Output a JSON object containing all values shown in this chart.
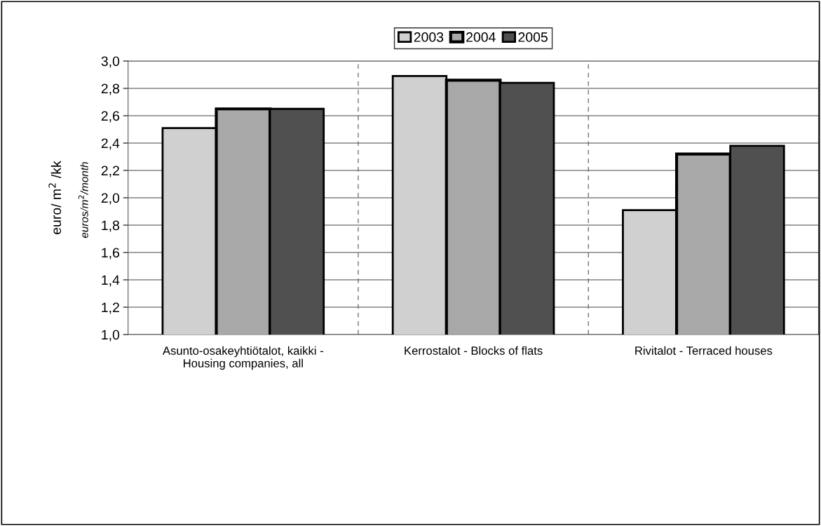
{
  "chart_data": {
    "type": "bar",
    "categories": [
      "Asunto-osakeyhtiötalot, kaikki -\nHousing companies, all",
      "Kerrostalot - Blocks of flats",
      "Rivitalot - Terraced houses"
    ],
    "series": [
      {
        "name": "2003",
        "color": "#d0d0d0",
        "values": [
          2.51,
          2.89,
          1.91
        ]
      },
      {
        "name": "2004",
        "color": "#a8a8a8",
        "values": [
          2.65,
          2.86,
          2.32
        ]
      },
      {
        "name": "2005",
        "color": "#505050",
        "values": [
          2.65,
          2.84,
          2.38
        ]
      }
    ],
    "ylabel": "euro/ m$^{2}$ /kk",
    "annotations": [
      "euros/m$^{2}$/month"
    ],
    "ylim": [
      1.0,
      3.0
    ],
    "yticks": [
      {
        "value": 1.0,
        "label": "1,0"
      },
      {
        "value": 1.2,
        "label": "1,2"
      },
      {
        "value": 1.4,
        "label": "1,4"
      },
      {
        "value": 1.6,
        "label": "1,6"
      },
      {
        "value": 1.8,
        "label": "1,8"
      },
      {
        "value": 2.0,
        "label": "2,0"
      },
      {
        "value": 2.2,
        "label": "2,2"
      },
      {
        "value": 2.4,
        "label": "2,4"
      },
      {
        "value": 2.6,
        "label": "2,6"
      },
      {
        "value": 2.8,
        "label": "2,8"
      },
      {
        "value": 3.0,
        "label": "3,0"
      }
    ],
    "grid": "y",
    "legend": "top"
  }
}
